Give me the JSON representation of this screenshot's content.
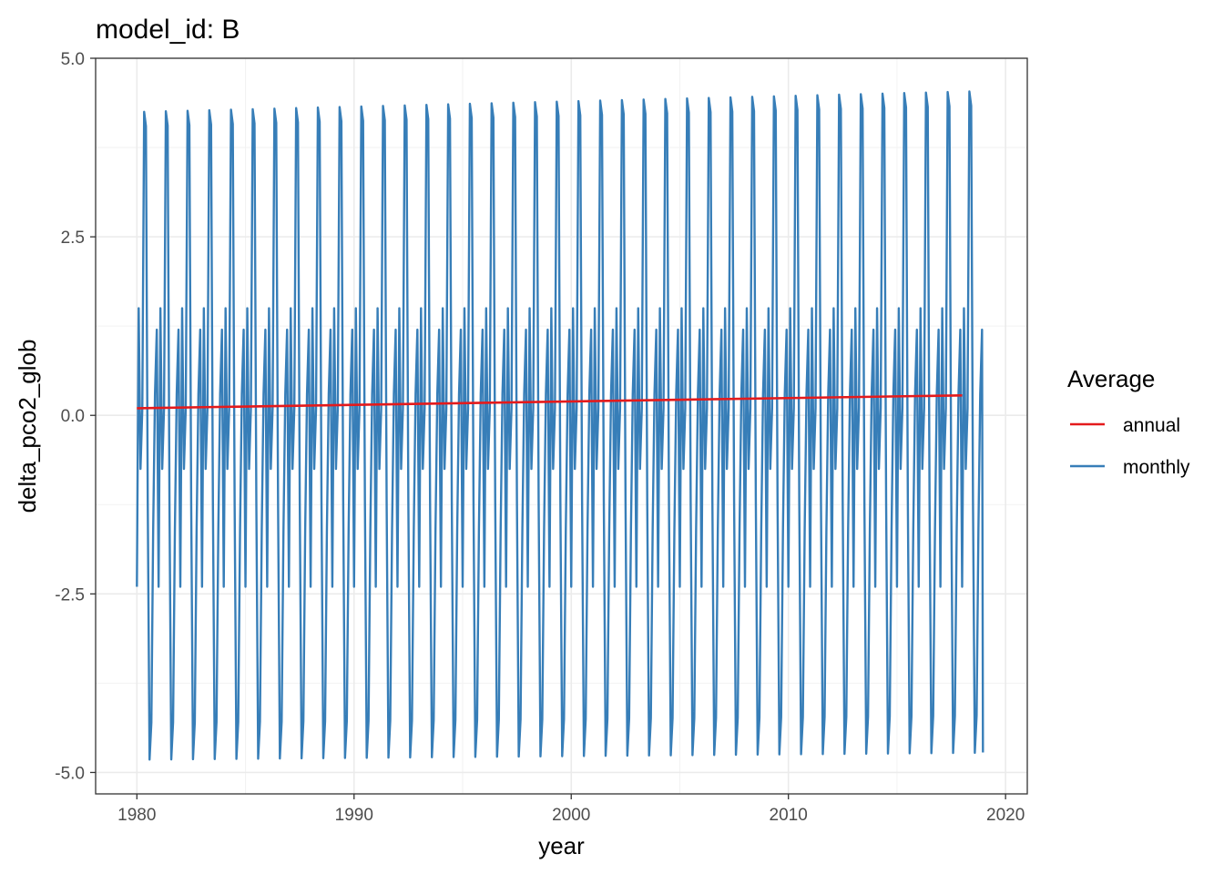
{
  "chart_data": {
    "type": "line",
    "title": "model_id: B",
    "xlabel": "year",
    "ylabel": "delta_pco2_glob",
    "xlim": [
      1978.1,
      2021.0
    ],
    "ylim": [
      -5.3,
      5.0
    ],
    "x_ticks": [
      1980,
      1990,
      2000,
      2010,
      2020
    ],
    "x_tick_labels": [
      "1980",
      "1990",
      "2000",
      "2010",
      "2020"
    ],
    "y_ticks": [
      5.0,
      2.5,
      0.0,
      -2.5,
      -5.0
    ],
    "y_tick_labels": [
      "5.0",
      "2.5",
      "0.0",
      "-2.5",
      "-5.0"
    ],
    "grid": true,
    "theme": "bw",
    "legend": {
      "title": "Average",
      "position": "right",
      "entries": [
        {
          "label": "annual",
          "color": "#e41a1c"
        },
        {
          "label": "monthly",
          "color": "#377eb8"
        }
      ]
    },
    "series": [
      {
        "name": "annual",
        "color": "#e41a1c",
        "x": [
          1980,
          2018
        ],
        "y": [
          0.1,
          0.28
        ]
      },
      {
        "name": "monthly",
        "color": "#377eb8",
        "start_year": 1980,
        "years": 39,
        "seasonal_cycle": [
          -2.4,
          1.5,
          -0.75,
          0.1,
          4.25,
          4.05,
          -1.2,
          -4.82,
          -4.3,
          -1.6,
          0.3,
          1.2
        ],
        "peak_trend_per_year": 0.0075,
        "trough_trend_per_year": 0.0025,
        "final_value": -4.72
      }
    ]
  }
}
